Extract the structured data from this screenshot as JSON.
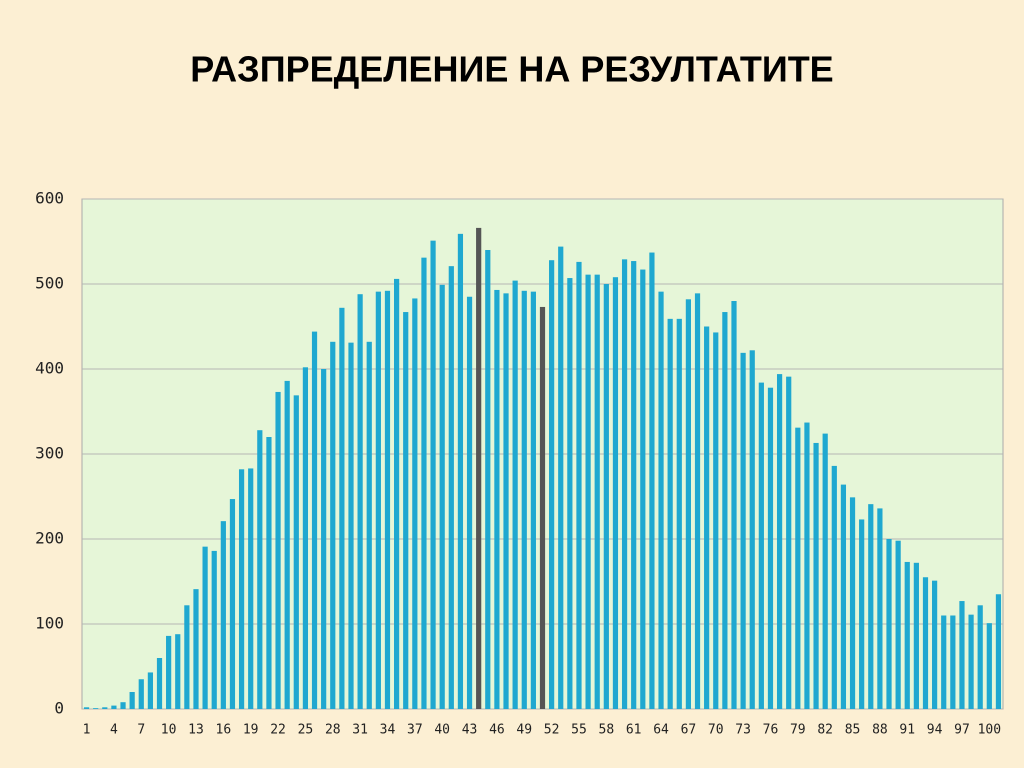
{
  "chart_data": {
    "type": "bar",
    "title": "РАЗПРЕДЕЛЕНИЕ НА РЕЗУЛТАТИТЕ",
    "categories": [
      "1",
      null,
      null,
      "4",
      null,
      null,
      "7",
      null,
      null,
      "10",
      null,
      null,
      "13",
      null,
      null,
      "16",
      null,
      null,
      "19",
      null,
      null,
      "22",
      null,
      null,
      "25",
      null,
      null,
      "28",
      null,
      null,
      "31",
      null,
      null,
      "34",
      null,
      null,
      "37",
      null,
      null,
      "40",
      null,
      null,
      "43",
      null,
      null,
      "46",
      null,
      null,
      "49",
      null,
      null,
      "52",
      null,
      null,
      "55",
      null,
      null,
      "58",
      null,
      null,
      "61",
      null,
      null,
      "64",
      null,
      null,
      "67",
      null,
      null,
      "70",
      null,
      null,
      "73",
      null,
      null,
      "76",
      null,
      null,
      "79",
      null,
      null,
      "82",
      null,
      null,
      "85",
      null,
      null,
      "88",
      null,
      null,
      "91",
      null,
      null,
      "94",
      null,
      null,
      "97",
      null,
      null,
      "100",
      null
    ],
    "values": [
      2,
      1,
      2,
      4,
      8,
      20,
      35,
      43,
      60,
      86,
      88,
      122,
      141,
      191,
      186,
      221,
      247,
      282,
      283,
      328,
      320,
      373,
      386,
      369,
      402,
      444,
      400,
      432,
      472,
      431,
      488,
      432,
      491,
      492,
      506,
      467,
      483,
      531,
      551,
      499,
      521,
      559,
      485,
      566,
      540,
      493,
      489,
      504,
      492,
      491,
      473,
      528,
      544,
      507,
      526,
      511,
      511,
      500,
      508,
      529,
      527,
      517,
      537,
      491,
      459,
      459,
      482,
      489,
      450,
      443,
      467,
      480,
      419,
      422,
      384,
      378,
      394,
      391,
      331,
      337,
      313,
      324,
      286,
      264,
      249,
      223,
      241,
      236,
      200,
      198,
      173,
      172,
      155,
      151,
      110,
      110,
      127,
      111,
      122,
      101,
      135
    ],
    "colors": [
      "#1fa8d0",
      "#1fa8d0",
      "#1fa8d0",
      "#1fa8d0",
      "#1fa8d0",
      "#1fa8d0",
      "#1fa8d0",
      "#1fa8d0",
      "#1fa8d0",
      "#1fa8d0",
      "#1fa8d0",
      "#1fa8d0",
      "#1fa8d0",
      "#1fa8d0",
      "#1fa8d0",
      "#1fa8d0",
      "#1fa8d0",
      "#1fa8d0",
      "#1fa8d0",
      "#1fa8d0",
      "#1fa8d0",
      "#1fa8d0",
      "#1fa8d0",
      "#1fa8d0",
      "#1fa8d0",
      "#1fa8d0",
      "#1fa8d0",
      "#1fa8d0",
      "#1fa8d0",
      "#1fa8d0",
      "#1fa8d0",
      "#1fa8d0",
      "#1fa8d0",
      "#1fa8d0",
      "#1fa8d0",
      "#1fa8d0",
      "#1fa8d0",
      "#1fa8d0",
      "#1fa8d0",
      "#1fa8d0",
      "#1fa8d0",
      "#1fa8d0",
      "#1fa8d0",
      "#555555",
      "#1fa8d0",
      "#1fa8d0",
      "#1fa8d0",
      "#1fa8d0",
      "#1fa8d0",
      "#1fa8d0",
      "#555555",
      "#1fa8d0",
      "#1fa8d0",
      "#1fa8d0",
      "#1fa8d0",
      "#1fa8d0",
      "#1fa8d0",
      "#1fa8d0",
      "#1fa8d0",
      "#1fa8d0",
      "#1fa8d0",
      "#1fa8d0",
      "#1fa8d0",
      "#1fa8d0",
      "#1fa8d0",
      "#1fa8d0",
      "#1fa8d0",
      "#1fa8d0",
      "#1fa8d0",
      "#1fa8d0",
      "#1fa8d0",
      "#1fa8d0",
      "#1fa8d0",
      "#1fa8d0",
      "#1fa8d0",
      "#1fa8d0",
      "#1fa8d0",
      "#1fa8d0",
      "#1fa8d0",
      "#1fa8d0",
      "#1fa8d0",
      "#1fa8d0",
      "#1fa8d0",
      "#1fa8d0",
      "#1fa8d0",
      "#1fa8d0",
      "#1fa8d0",
      "#1fa8d0",
      "#1fa8d0",
      "#1fa8d0",
      "#1fa8d0",
      "#1fa8d0",
      "#1fa8d0",
      "#1fa8d0",
      "#1fa8d0",
      "#1fa8d0",
      "#1fa8d0",
      "#1fa8d0",
      "#1fa8d0",
      "#1fa8d0",
      "#1fa8d0"
    ],
    "ylim": [
      0,
      600
    ],
    "yticks": [
      0,
      100,
      200,
      300,
      400,
      500,
      600
    ],
    "grid": true
  }
}
